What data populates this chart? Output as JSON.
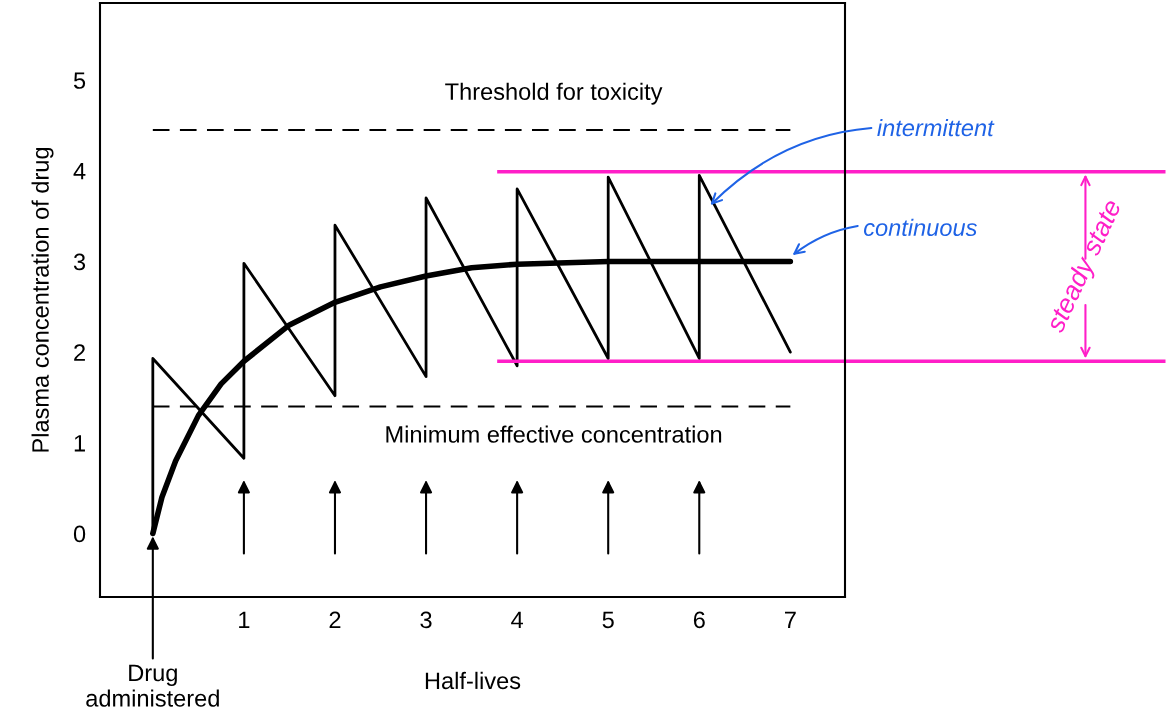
{
  "chart_data": {
    "type": "line",
    "xlabel": "Half-lives",
    "ylabel": "Plasma concentration of drug",
    "xlim": [
      -0.58,
      7.6
    ],
    "ylim": [
      -0.7,
      5.85
    ],
    "xticks": [
      1,
      2,
      3,
      4,
      5,
      6,
      7
    ],
    "yticks": [
      0,
      1,
      2,
      3,
      4,
      5
    ],
    "grid": false,
    "marker": "none",
    "series": [
      {
        "name": "intermittent",
        "color": "#000000",
        "line_style": "solid",
        "x": [
          0,
          0,
          1,
          1,
          2,
          2,
          3,
          3,
          4,
          4,
          5,
          5,
          6,
          6,
          7
        ],
        "values": [
          0,
          1.93,
          0.83,
          2.98,
          1.52,
          3.4,
          1.73,
          3.7,
          1.85,
          3.8,
          1.93,
          3.93,
          1.93,
          3.95,
          2.0
        ]
      },
      {
        "name": "continuous",
        "color": "#000000",
        "line_style": "solid",
        "x": [
          0,
          0.1,
          0.25,
          0.5,
          0.75,
          1,
          1.5,
          2,
          2.5,
          3,
          3.5,
          4,
          5,
          6,
          7
        ],
        "values": [
          0,
          0.4,
          0.8,
          1.3,
          1.65,
          1.9,
          2.3,
          2.55,
          2.72,
          2.84,
          2.93,
          2.97,
          3.0,
          3.0,
          3.0
        ]
      }
    ],
    "ref_lines": [
      {
        "axis": "y",
        "value": 4.45,
        "label": "Threshold for toxicity",
        "color": "#000000",
        "line_style": "dashed"
      },
      {
        "axis": "y",
        "value": 1.4,
        "label": "Minimum effective concentration",
        "color": "#000000",
        "line_style": "dashed"
      },
      {
        "axis": "y",
        "value": 3.99,
        "label": null,
        "color": "#ff1fc8",
        "line_style": "solid"
      },
      {
        "axis": "y",
        "value": 1.9,
        "label": null,
        "color": "#ff1fc8",
        "line_style": "solid"
      }
    ],
    "annotations": [
      "steady state",
      {
        "text": "Drug administered",
        "x": 0,
        "y": 0
      }
    ]
  }
}
